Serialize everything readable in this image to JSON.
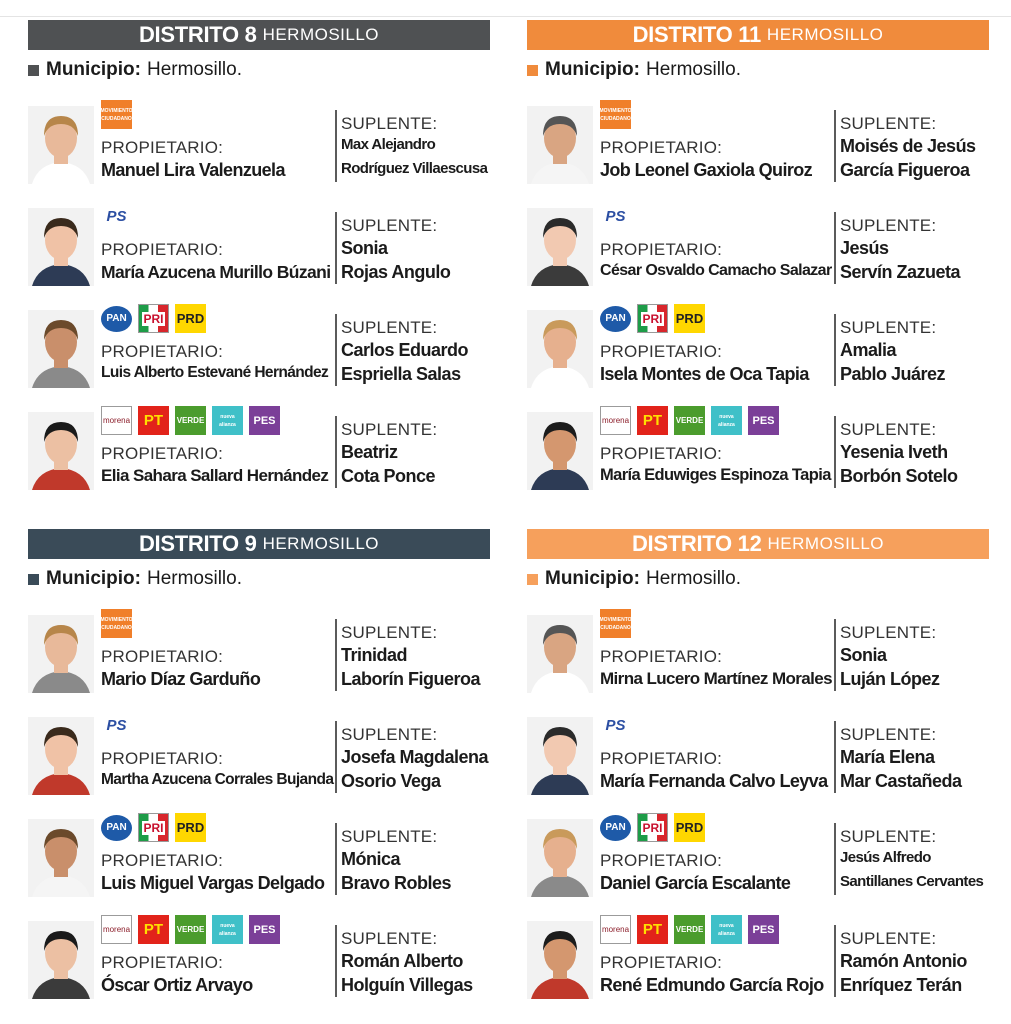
{
  "districts": [
    {
      "title": "DISTRITO 8",
      "city": "HERMOSILLO",
      "header_color": "#4f5153",
      "municipio_label": "Municipio:",
      "municipio_value": "Hermosillo.",
      "candidates": [
        {
          "logos": [
            "mc"
          ],
          "propietario_label": "PROPIETARIO:",
          "propietario": "Manuel Lira Valenzuela",
          "suplente_label": "SUPLENTE:",
          "suplente_line1": "Max Alejandro",
          "suplente_line2": "Rodríguez Villaescusa"
        },
        {
          "logos": [
            "ps"
          ],
          "propietario_label": "PROPIETARIO:",
          "propietario": "María Azucena Murillo Búzani",
          "suplente_label": "SUPLENTE:",
          "suplente_line1": "Sonia",
          "suplente_line2": "Rojas Angulo"
        },
        {
          "logos": [
            "pan",
            "pri",
            "prd"
          ],
          "propietario_label": "PROPIETARIO:",
          "propietario": "Luis Alberto Estevané Hernández",
          "suplente_label": "SUPLENTE:",
          "suplente_line1": "Carlos Eduardo",
          "suplente_line2": "Espriella Salas"
        },
        {
          "logos": [
            "morena",
            "pt",
            "verde",
            "nal",
            "pes"
          ],
          "propietario_label": "PROPIETARIO:",
          "propietario": "Elia Sahara Sallard Hernández",
          "suplente_label": "SUPLENTE:",
          "suplente_line1": "Beatriz",
          "suplente_line2": "Cota Ponce"
        }
      ]
    },
    {
      "title": "DISTRITO 11",
      "city": "HERMOSILLO",
      "header_color": "#f08b3c",
      "municipio_label": "Municipio:",
      "municipio_value": "Hermosillo.",
      "candidates": [
        {
          "logos": [
            "mc"
          ],
          "propietario_label": "PROPIETARIO:",
          "propietario": "Job Leonel Gaxiola Quiroz",
          "suplente_label": "SUPLENTE:",
          "suplente_line1": "Moisés de Jesús",
          "suplente_line2": "García Figueroa"
        },
        {
          "logos": [
            "ps"
          ],
          "propietario_label": "PROPIETARIO:",
          "propietario": "César Osvaldo Camacho Salazar",
          "suplente_label": "SUPLENTE:",
          "suplente_line1": "Jesús",
          "suplente_line2": "Servín Zazueta"
        },
        {
          "logos": [
            "pan",
            "pri",
            "prd"
          ],
          "propietario_label": "PROPIETARIO:",
          "propietario": "Isela Montes de Oca Tapia",
          "suplente_label": "SUPLENTE:",
          "suplente_line1": "Amalia",
          "suplente_line2": "Pablo Juárez"
        },
        {
          "logos": [
            "morena",
            "pt",
            "verde",
            "nal",
            "pes"
          ],
          "propietario_label": "PROPIETARIO:",
          "propietario": "María Eduwiges Espinoza Tapia",
          "suplente_label": "SUPLENTE:",
          "suplente_line1": "Yesenia Iveth",
          "suplente_line2": "Borbón Sotelo"
        }
      ]
    },
    {
      "title": "DISTRITO 9",
      "city": "HERMOSILLO",
      "header_color": "#3a4b58",
      "municipio_label": "Municipio:",
      "municipio_value": "Hermosillo.",
      "candidates": [
        {
          "logos": [
            "mc"
          ],
          "propietario_label": "PROPIETARIO:",
          "propietario": "Mario Díaz Garduño",
          "suplente_label": "SUPLENTE:",
          "suplente_line1": "Trinidad",
          "suplente_line2": "Laborín Figueroa"
        },
        {
          "logos": [
            "ps"
          ],
          "propietario_label": "PROPIETARIO:",
          "propietario": "Martha Azucena Corrales Bujanda",
          "suplente_label": "SUPLENTE:",
          "suplente_line1": "Josefa Magdalena",
          "suplente_line2": "Osorio Vega"
        },
        {
          "logos": [
            "pan",
            "pri",
            "prd"
          ],
          "propietario_label": "PROPIETARIO:",
          "propietario": "Luis Miguel Vargas Delgado",
          "suplente_label": "SUPLENTE:",
          "suplente_line1": "Mónica",
          "suplente_line2": "Bravo Robles"
        },
        {
          "logos": [
            "morena",
            "pt",
            "verde",
            "nal",
            "pes"
          ],
          "propietario_label": "PROPIETARIO:",
          "propietario": "Óscar Ortiz Arvayo",
          "suplente_label": "SUPLENTE:",
          "suplente_line1": "Román Alberto",
          "suplente_line2": "Holguín Villegas"
        }
      ]
    },
    {
      "title": "DISTRITO 12",
      "city": "HERMOSILLO",
      "header_color": "#f6a05c",
      "municipio_label": "Municipio:",
      "municipio_value": "Hermosillo.",
      "candidates": [
        {
          "logos": [
            "mc"
          ],
          "propietario_label": "PROPIETARIO:",
          "propietario": "Mirna Lucero Martínez Morales",
          "suplente_label": "SUPLENTE:",
          "suplente_line1": "Sonia",
          "suplente_line2": "Luján López"
        },
        {
          "logos": [
            "ps"
          ],
          "propietario_label": "PROPIETARIO:",
          "propietario": "María Fernanda Calvo Leyva",
          "suplente_label": "SUPLENTE:",
          "suplente_line1": "María Elena",
          "suplente_line2": "Mar Castañeda"
        },
        {
          "logos": [
            "pan",
            "pri",
            "prd"
          ],
          "propietario_label": "PROPIETARIO:",
          "propietario": "Daniel García Escalante",
          "suplente_label": "SUPLENTE:",
          "suplente_line1": "Jesús Alfredo",
          "suplente_line2": "Santillanes Cervantes"
        },
        {
          "logos": [
            "morena",
            "pt",
            "verde",
            "nal",
            "pes"
          ],
          "propietario_label": "PROPIETARIO:",
          "propietario": "René Edmundo García Rojo",
          "suplente_label": "SUPLENTE:",
          "suplente_line1": "Ramón Antonio",
          "suplente_line2": "Enríquez Terán"
        }
      ]
    }
  ],
  "logo_texts": {
    "mc": "MOVIMIENTO CIUDADANO",
    "ps": "PS",
    "pan": "PAN",
    "pri": "PRI",
    "prd": "PRD",
    "morena": "morena",
    "pt": "PT",
    "verde": "VERDE",
    "nal": "nueva alianza",
    "pes": "PES"
  }
}
